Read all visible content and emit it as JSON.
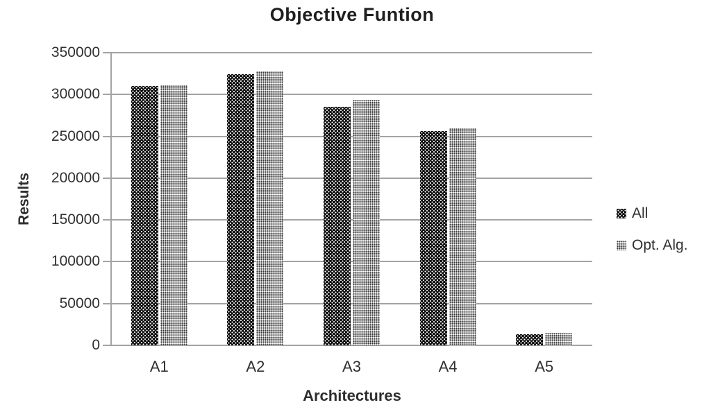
{
  "title": "Objective Funtion",
  "colors": {
    "text": "#303030",
    "title_text": "#1f1f1f",
    "grid": "#a3a3a3",
    "bar_dark": "#0a0a0a",
    "bar_light_dots": "#333333"
  },
  "chart_data": {
    "type": "bar",
    "title": "Objective Funtion",
    "xlabel": "Architectures",
    "ylabel": "Results",
    "categories": [
      "A1",
      "A2",
      "A3",
      "A4",
      "A5"
    ],
    "series": [
      {
        "name": "All",
        "pattern": "dark-dots",
        "swatch": "pat-dark",
        "values": [
          310000,
          324000,
          285000,
          256000,
          13000
        ]
      },
      {
        "name": "Opt. Alg.",
        "pattern": "light-dots",
        "swatch": "pat-light",
        "values": [
          311000,
          328000,
          294000,
          260000,
          15000
        ]
      }
    ],
    "ylim": [
      0,
      350000
    ],
    "ytick_labels": [
      "0",
      "50000",
      "100000",
      "150000",
      "200000",
      "250000",
      "300000",
      "350000"
    ],
    "grid": true,
    "vertical_gridlines": false,
    "legend_position": "right"
  }
}
